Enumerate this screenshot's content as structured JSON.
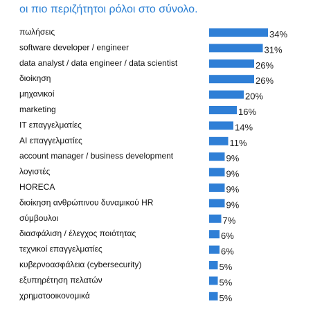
{
  "chart_data": {
    "type": "bar",
    "orientation": "horizontal",
    "title": "οι πιο περιζήτητοι ρόλοι στο σύνολο.",
    "categories": [
      "πωλήσεις",
      "software developer / engineer",
      "data analyst / data engineer / data scientist",
      "διοίκηση",
      "μηχανικοί",
      "marketing",
      "IT επαγγελματίες",
      "AI επαγγελματίες",
      "account manager / business development",
      "λογιστές",
      "HORECA",
      "διοίκηση ανθρώπινου δυναμικού HR",
      "σύμβουλοι",
      "διασφάλιση / έλεγχος ποιότητας",
      "τεχνικοί επαγγελματίες",
      "κυβερνοασφάλεια (cybersecurity)",
      "εξυπηρέτηση πελατών",
      "χρηματοοικονομικά"
    ],
    "values": [
      34,
      31,
      26,
      26,
      20,
      16,
      14,
      11,
      9,
      9,
      9,
      9,
      7,
      6,
      6,
      5,
      5,
      5
    ],
    "value_labels": [
      "34%",
      "31%",
      "26%",
      "26%",
      "20%",
      "16%",
      "14%",
      "11%",
      "9%",
      "9%",
      "9%",
      "9%",
      "7%",
      "6%",
      "6%",
      "5%",
      "5%",
      "5%"
    ],
    "unit": "%",
    "xlim": [
      0,
      34
    ],
    "grid": false,
    "legend": "none",
    "colors": {
      "bar": "#2f7fd6",
      "title": "#2a7fd4",
      "label": "#111111"
    }
  }
}
